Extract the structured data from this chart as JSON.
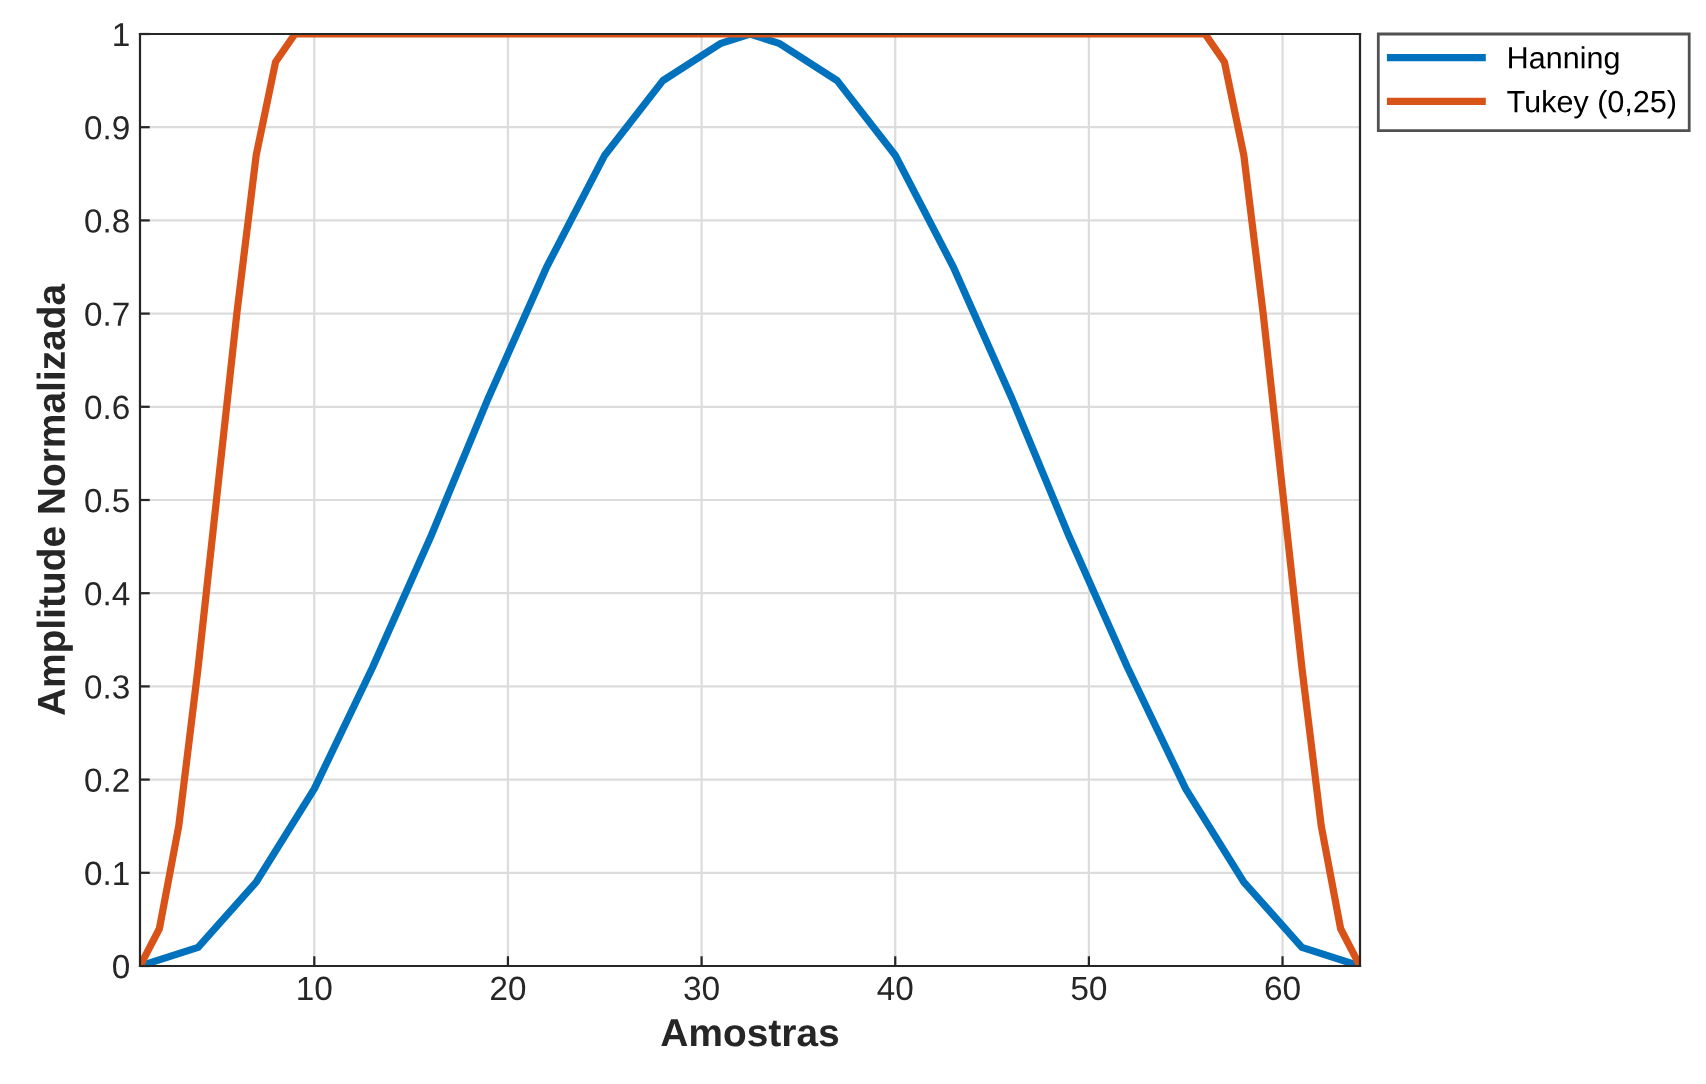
{
  "chart_data": {
    "type": "line",
    "xlabel": "Amostras",
    "ylabel": "Amplitude Normalizada",
    "xlim": [
      1,
      64
    ],
    "xticks": [
      10,
      20,
      30,
      40,
      50,
      60
    ],
    "ylim": [
      0,
      1
    ],
    "yticks": [
      0,
      0.1,
      0.2,
      0.3,
      0.4,
      0.5,
      0.6,
      0.7,
      0.8,
      0.9,
      1
    ],
    "grid": true,
    "legend": "top right",
    "marker": "none",
    "line_style": "solid",
    "series": [
      {
        "name": "Hanning",
        "color": "#0072bd",
        "x": [
          1,
          4,
          7,
          10,
          13,
          16,
          19,
          22,
          25,
          28,
          31,
          32.5,
          34,
          37,
          40,
          43,
          46,
          49,
          52,
          55,
          58,
          61,
          64
        ],
        "values": [
          0,
          0.02,
          0.09,
          0.19,
          0.32,
          0.46,
          0.61,
          0.75,
          0.87,
          0.95,
          0.99,
          1,
          0.99,
          0.95,
          0.87,
          0.75,
          0.61,
          0.46,
          0.32,
          0.19,
          0.09,
          0.02,
          0
        ]
      },
      {
        "name": "Tukey (0,25)",
        "color": "#d95319",
        "x": [
          1,
          2,
          3,
          4,
          5,
          6,
          7,
          8,
          9,
          56,
          57,
          58,
          59,
          60,
          61,
          62,
          63,
          64
        ],
        "values": [
          0,
          0.04,
          0.15,
          0.32,
          0.51,
          0.7,
          0.87,
          0.97,
          1,
          1,
          0.97,
          0.87,
          0.7,
          0.51,
          0.32,
          0.15,
          0.04,
          0
        ]
      }
    ]
  }
}
